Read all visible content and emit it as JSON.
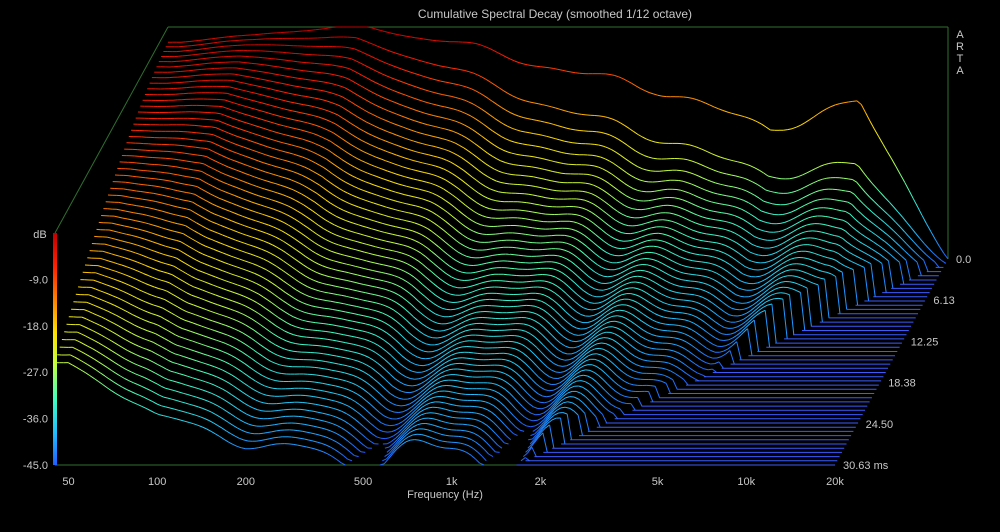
{
  "chart_data": {
    "type": "waterfall",
    "title": "Cumulative Spectral Decay (smoothed 1/12 octave)",
    "brand": "ARTA",
    "xlabel": "Frequency (Hz)",
    "xscale": "log",
    "xlim": [
      45,
      20000
    ],
    "x_ticks": [
      {
        "label": "50",
        "value": 50
      },
      {
        "label": "100",
        "value": 100
      },
      {
        "label": "200",
        "value": 200
      },
      {
        "label": "500",
        "value": 500
      },
      {
        "label": "1k",
        "value": 1000
      },
      {
        "label": "2k",
        "value": 2000
      },
      {
        "label": "5k",
        "value": 5000
      },
      {
        "label": "10k",
        "value": 10000
      },
      {
        "label": "20k",
        "value": 20000
      }
    ],
    "zlabel": "dB",
    "zlim": [
      -45,
      0
    ],
    "z_ticks": [
      {
        "label": "-9.0",
        "value": -9
      },
      {
        "label": "-18.0",
        "value": -18
      },
      {
        "label": "-27.0",
        "value": -27
      },
      {
        "label": "-36.0",
        "value": -36
      },
      {
        "label": "-45.0",
        "value": -45
      }
    ],
    "time_label_suffix": "ms",
    "tlim": [
      0,
      30.63
    ],
    "t_ticks": [
      {
        "label": "0.0",
        "value": 0
      },
      {
        "label": "6.13",
        "value": 6.13
      },
      {
        "label": "12.25",
        "value": 12.25
      },
      {
        "label": "18.38",
        "value": 18.38
      },
      {
        "label": "24.50",
        "value": 24.5
      },
      {
        "label": "30.63 ms",
        "value": 30.63
      }
    ],
    "slice_count": 50,
    "colormap": [
      "#2060ff",
      "#20c0ff",
      "#40ffc0",
      "#c0ff40",
      "#ffe000",
      "#ff8000",
      "#ff2000",
      "#c00000"
    ],
    "grid": false,
    "series": [
      {
        "t": 0.0,
        "x": [
          50,
          100,
          200,
          500,
          1000,
          2000,
          5000,
          10000,
          20000
        ],
        "y": [
          -3,
          -1,
          0,
          -4,
          -8,
          -12,
          -20,
          -14,
          -45
        ]
      },
      {
        "t": 30.63,
        "x": [
          50,
          100,
          200,
          500,
          1000,
          2000,
          5000,
          10000,
          20000
        ],
        "y": [
          -25,
          -36,
          -40,
          -44,
          -44,
          -45,
          -45,
          -45,
          -45
        ]
      }
    ]
  }
}
